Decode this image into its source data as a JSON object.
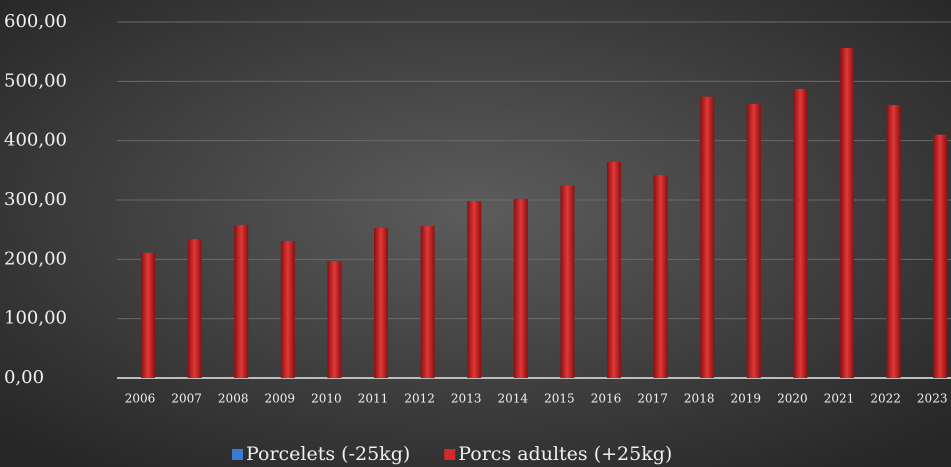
{
  "chart_data": {
    "type": "bar",
    "categories": [
      "2006",
      "2007",
      "2008",
      "2009",
      "2010",
      "2011",
      "2012",
      "2013",
      "2014",
      "2015",
      "2016",
      "2017",
      "2018",
      "2019",
      "2020",
      "2021",
      "2022",
      "2023"
    ],
    "series": [
      {
        "name": "Porcelets (-25kg)",
        "color": "#3a7bd5",
        "values": [
          null,
          null,
          null,
          null,
          null,
          null,
          null,
          null,
          null,
          null,
          null,
          null,
          null,
          null,
          null,
          null,
          null,
          null
        ]
      },
      {
        "name": "Porcs adultes (+25kg)",
        "color": "#d42a2a",
        "values": [
          211,
          234,
          258,
          231,
          197,
          253,
          256,
          298,
          302,
          324,
          364,
          342,
          474,
          462,
          487,
          556,
          460,
          410
        ]
      }
    ],
    "ylim": [
      0,
      600
    ],
    "yticks": [
      {
        "value": 0,
        "label": "0,00"
      },
      {
        "value": 100,
        "label": "100,00"
      },
      {
        "value": 200,
        "label": "200,00"
      },
      {
        "value": 300,
        "label": "300,00"
      },
      {
        "value": 400,
        "label": "400,00"
      },
      {
        "value": 500,
        "label": "500,00"
      },
      {
        "value": 600,
        "label": "600,00"
      }
    ],
    "grid": true,
    "legend": "bottom"
  }
}
